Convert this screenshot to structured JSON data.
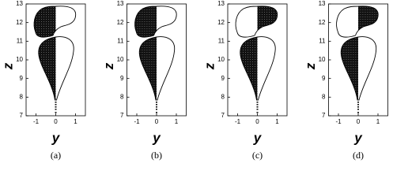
{
  "chart_data": [
    {
      "type": "region",
      "filled": {
        "upper": "left",
        "lower": "left"
      },
      "xlabel": "y",
      "ylabel": "z",
      "caption": "(a)",
      "xlim": [
        -1.5,
        1.5
      ],
      "ylim": [
        7,
        13
      ],
      "xticks": [
        -1,
        0,
        1
      ],
      "yticks": [
        7,
        8,
        9,
        10,
        11,
        12,
        13
      ]
    },
    {
      "type": "region",
      "filled": {
        "upper": "left",
        "lower": "left"
      },
      "xlabel": "y",
      "ylabel": "z",
      "caption": "(b)",
      "xlim": [
        -1.5,
        1.5
      ],
      "ylim": [
        7,
        13
      ],
      "xticks": [
        -1,
        0,
        1
      ],
      "yticks": [
        7,
        8,
        9,
        10,
        11,
        12,
        13
      ]
    },
    {
      "type": "region",
      "filled": {
        "upper": "right",
        "lower": "left"
      },
      "xlabel": "y",
      "ylabel": "z",
      "caption": "(c)",
      "xlim": [
        -1.5,
        1.5
      ],
      "ylim": [
        7,
        13
      ],
      "xticks": [
        -1,
        0,
        1
      ],
      "yticks": [
        7,
        8,
        9,
        10,
        11,
        12,
        13
      ]
    },
    {
      "type": "region",
      "filled": {
        "upper": "right",
        "lower": "left"
      },
      "xlabel": "y",
      "ylabel": "z",
      "caption": "(d)",
      "xlim": [
        -1.5,
        1.5
      ],
      "ylim": [
        7,
        13
      ],
      "xticks": [
        -1,
        0,
        1
      ],
      "yticks": [
        7,
        8,
        9,
        10,
        11,
        12,
        13
      ]
    }
  ]
}
